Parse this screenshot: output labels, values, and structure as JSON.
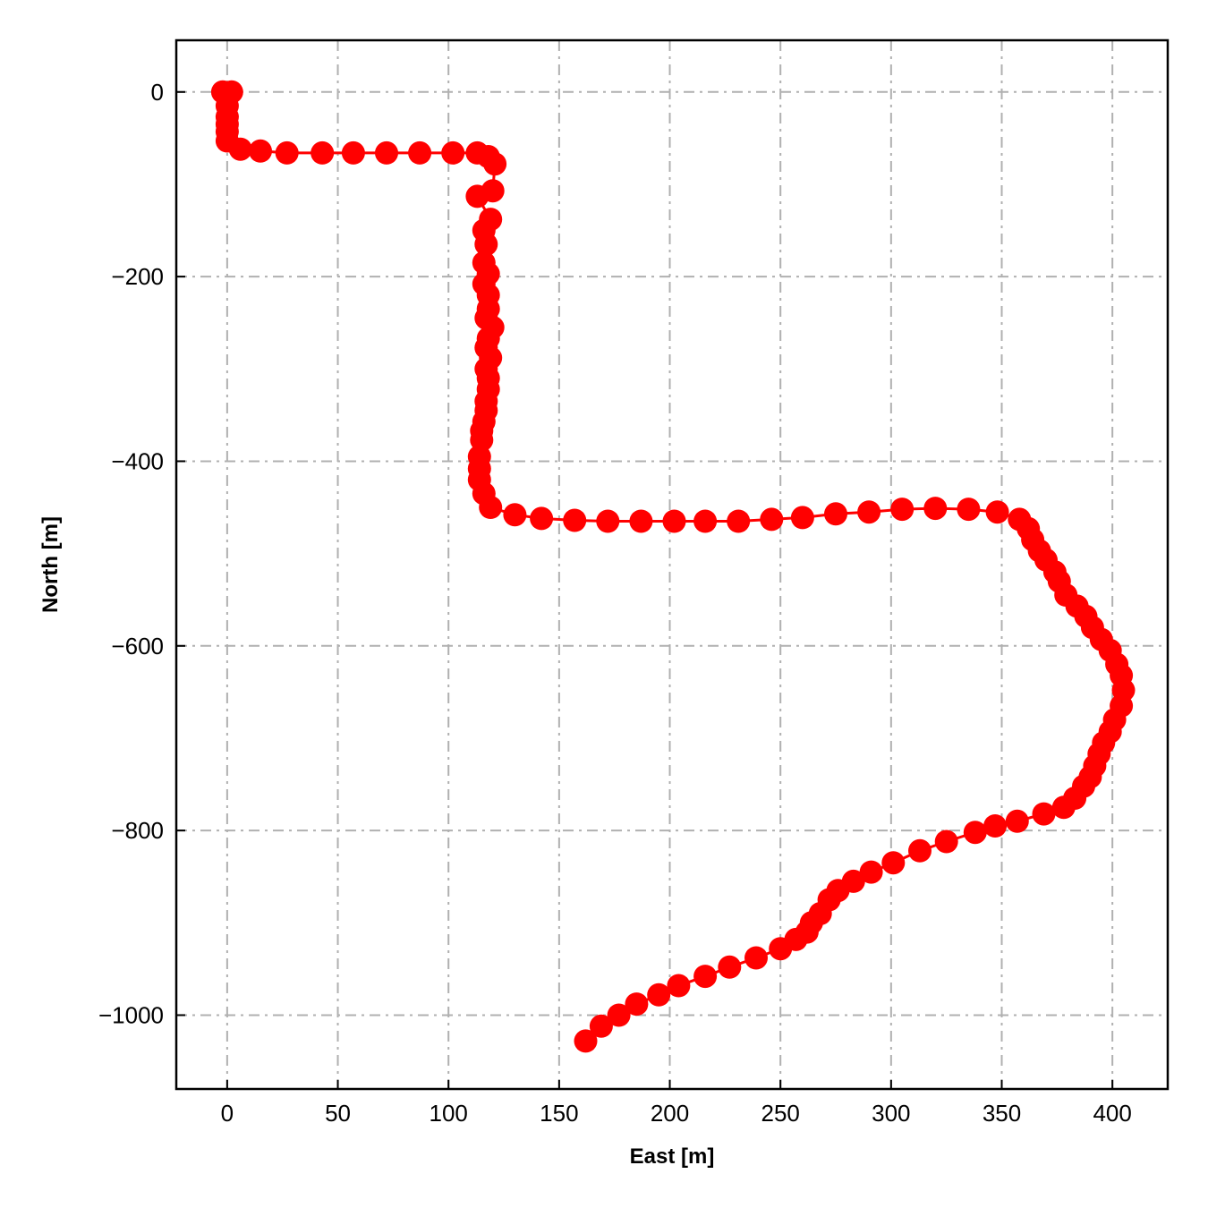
{
  "chart_data": {
    "type": "line",
    "title": "",
    "xlabel": "East [m]",
    "ylabel": "North [m]",
    "xlim": [
      -23,
      425
    ],
    "ylim": [
      -1080,
      56
    ],
    "xticks": [
      0,
      50,
      100,
      150,
      200,
      250,
      300,
      350,
      400
    ],
    "yticks": [
      0,
      -200,
      -400,
      -600,
      -800,
      -1000
    ],
    "xtick_labels": [
      "0",
      "50",
      "100",
      "150",
      "200",
      "250",
      "300",
      "350",
      "400"
    ],
    "ytick_labels": [
      "0",
      "−200",
      "−400",
      "−600",
      "−800",
      "−1000"
    ],
    "grid": true,
    "grid_style": "dashdot",
    "legend": "none",
    "series": [
      {
        "color": "#ff0000",
        "marker": "circle",
        "x": [
          -2,
          2,
          0,
          0,
          0,
          0,
          0,
          6,
          15,
          27,
          43,
          57,
          72,
          87,
          102,
          113,
          118,
          121,
          120,
          113,
          119,
          116,
          117,
          116,
          118,
          116,
          118,
          118,
          117,
          120,
          118,
          117,
          119,
          117,
          118,
          118,
          117,
          117,
          116,
          115,
          115,
          114,
          114,
          114,
          116,
          119,
          130,
          142,
          157,
          172,
          187,
          202,
          216,
          231,
          246,
          260,
          275,
          290,
          305,
          320,
          335,
          348,
          358,
          362,
          364,
          367,
          370,
          374,
          376,
          379,
          384,
          388,
          391,
          395,
          399,
          402,
          404,
          405,
          404,
          401,
          399,
          396,
          394,
          392,
          390,
          387,
          383,
          378,
          369,
          357,
          347,
          338,
          325,
          313,
          301,
          291,
          283,
          276,
          272,
          268,
          264,
          262,
          257,
          250,
          239,
          227,
          216,
          204,
          195,
          185,
          177,
          169,
          162
        ],
        "y": [
          0,
          0,
          -15,
          -27,
          -35,
          -43,
          -53,
          -62,
          -64,
          -66,
          -66,
          -66,
          -66,
          -66,
          -66,
          -66,
          -70,
          -78,
          -107,
          -113,
          -138,
          -150,
          -165,
          -185,
          -197,
          -208,
          -220,
          -235,
          -245,
          -255,
          -267,
          -277,
          -288,
          -300,
          -310,
          -322,
          -335,
          -345,
          -357,
          -367,
          -377,
          -395,
          -408,
          -420,
          -435,
          -450,
          -458,
          -462,
          -464,
          -465,
          -465,
          -465,
          -465,
          -465,
          -463,
          -461,
          -457,
          -455,
          -452,
          -451,
          -452,
          -455,
          -463,
          -473,
          -485,
          -497,
          -507,
          -520,
          -530,
          -545,
          -557,
          -568,
          -580,
          -593,
          -605,
          -620,
          -632,
          -648,
          -665,
          -680,
          -693,
          -705,
          -717,
          -730,
          -742,
          -752,
          -765,
          -775,
          -782,
          -790,
          -795,
          -802,
          -812,
          -822,
          -835,
          -845,
          -855,
          -865,
          -875,
          -890,
          -900,
          -910,
          -918,
          -928,
          -938,
          -948,
          -958,
          -968,
          -978,
          -988,
          -1000,
          -1012,
          -1028
        ]
      }
    ]
  }
}
